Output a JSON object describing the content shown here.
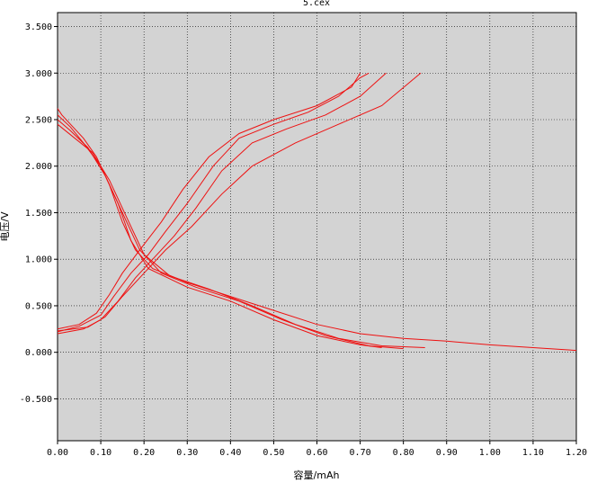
{
  "chart_data": {
    "type": "line",
    "title": "5.cex",
    "xlabel": "容量/mAh",
    "ylabel": "电压/V",
    "xlim": [
      0.0,
      1.2
    ],
    "ylim": [
      -0.95,
      3.65
    ],
    "grid": true,
    "background_color": "#d3d3d3",
    "line_color": "#ee1111",
    "x_ticks": [
      "0.00",
      "0.10",
      "0.20",
      "0.30",
      "0.40",
      "0.50",
      "0.60",
      "0.70",
      "0.80",
      "0.90",
      "1.00",
      "1.10",
      "1.20"
    ],
    "y_ticks": [
      "-0.500",
      "0.000",
      "0.500",
      "1.000",
      "1.500",
      "2.000",
      "2.500",
      "3.000",
      "3.500"
    ],
    "series": [
      {
        "values": [
          [
            0.0,
            2.62
          ],
          [
            0.01,
            2.55
          ],
          [
            0.03,
            2.45
          ],
          [
            0.06,
            2.3
          ],
          [
            0.09,
            2.1
          ],
          [
            0.12,
            1.8
          ],
          [
            0.15,
            1.4
          ],
          [
            0.18,
            1.1
          ],
          [
            0.22,
            0.9
          ],
          [
            0.3,
            0.75
          ],
          [
            0.4,
            0.6
          ],
          [
            0.5,
            0.45
          ],
          [
            0.6,
            0.3
          ],
          [
            0.7,
            0.2
          ],
          [
            0.8,
            0.15
          ],
          [
            0.9,
            0.12
          ],
          [
            1.0,
            0.08
          ],
          [
            1.1,
            0.05
          ],
          [
            1.2,
            0.02
          ]
        ]
      },
      {
        "values": [
          [
            0.0,
            2.55
          ],
          [
            0.03,
            2.42
          ],
          [
            0.06,
            2.25
          ],
          [
            0.1,
            2.0
          ],
          [
            0.14,
            1.6
          ],
          [
            0.17,
            1.2
          ],
          [
            0.21,
            0.9
          ],
          [
            0.3,
            0.7
          ],
          [
            0.4,
            0.55
          ],
          [
            0.5,
            0.35
          ],
          [
            0.6,
            0.18
          ],
          [
            0.7,
            0.08
          ],
          [
            0.75,
            0.05
          ]
        ]
      },
      {
        "values": [
          [
            0.0,
            2.5
          ],
          [
            0.03,
            2.38
          ],
          [
            0.07,
            2.2
          ],
          [
            0.11,
            1.9
          ],
          [
            0.15,
            1.5
          ],
          [
            0.19,
            1.1
          ],
          [
            0.24,
            0.85
          ],
          [
            0.32,
            0.7
          ],
          [
            0.42,
            0.55
          ],
          [
            0.52,
            0.35
          ],
          [
            0.62,
            0.18
          ],
          [
            0.72,
            0.07
          ],
          [
            0.8,
            0.04
          ]
        ]
      },
      {
        "values": [
          [
            0.0,
            2.45
          ],
          [
            0.04,
            2.3
          ],
          [
            0.08,
            2.15
          ],
          [
            0.12,
            1.85
          ],
          [
            0.16,
            1.45
          ],
          [
            0.2,
            1.05
          ],
          [
            0.26,
            0.82
          ],
          [
            0.35,
            0.68
          ],
          [
            0.45,
            0.5
          ],
          [
            0.55,
            0.3
          ],
          [
            0.65,
            0.15
          ],
          [
            0.75,
            0.07
          ],
          [
            0.85,
            0.05
          ]
        ]
      },
      {
        "values": [
          [
            0.0,
            0.22
          ],
          [
            0.05,
            0.28
          ],
          [
            0.1,
            0.4
          ],
          [
            0.13,
            0.6
          ],
          [
            0.17,
            0.85
          ],
          [
            0.21,
            1.05
          ],
          [
            0.25,
            1.3
          ],
          [
            0.3,
            1.6
          ],
          [
            0.36,
            2.0
          ],
          [
            0.42,
            2.3
          ],
          [
            0.5,
            2.45
          ],
          [
            0.58,
            2.58
          ],
          [
            0.65,
            2.75
          ],
          [
            0.7,
            2.95
          ],
          [
            0.72,
            3.0
          ]
        ]
      },
      {
        "values": [
          [
            0.0,
            0.2
          ],
          [
            0.06,
            0.25
          ],
          [
            0.1,
            0.35
          ],
          [
            0.14,
            0.55
          ],
          [
            0.18,
            0.8
          ],
          [
            0.22,
            1.0
          ],
          [
            0.27,
            1.25
          ],
          [
            0.32,
            1.55
          ],
          [
            0.38,
            1.95
          ],
          [
            0.45,
            2.25
          ],
          [
            0.53,
            2.4
          ],
          [
            0.62,
            2.55
          ],
          [
            0.7,
            2.75
          ],
          [
            0.76,
            3.0
          ]
        ]
      },
      {
        "values": [
          [
            0.0,
            0.25
          ],
          [
            0.05,
            0.3
          ],
          [
            0.09,
            0.42
          ],
          [
            0.12,
            0.62
          ],
          [
            0.15,
            0.85
          ],
          [
            0.19,
            1.1
          ],
          [
            0.24,
            1.4
          ],
          [
            0.29,
            1.75
          ],
          [
            0.35,
            2.1
          ],
          [
            0.42,
            2.35
          ],
          [
            0.5,
            2.5
          ],
          [
            0.6,
            2.65
          ],
          [
            0.68,
            2.85
          ],
          [
            0.7,
            3.0
          ]
        ]
      },
      {
        "values": [
          [
            0.0,
            0.23
          ],
          [
            0.07,
            0.27
          ],
          [
            0.11,
            0.38
          ],
          [
            0.15,
            0.6
          ],
          [
            0.2,
            0.85
          ],
          [
            0.25,
            1.1
          ],
          [
            0.31,
            1.35
          ],
          [
            0.38,
            1.7
          ],
          [
            0.45,
            2.0
          ],
          [
            0.55,
            2.25
          ],
          [
            0.65,
            2.45
          ],
          [
            0.75,
            2.65
          ],
          [
            0.84,
            3.0
          ]
        ]
      }
    ]
  }
}
